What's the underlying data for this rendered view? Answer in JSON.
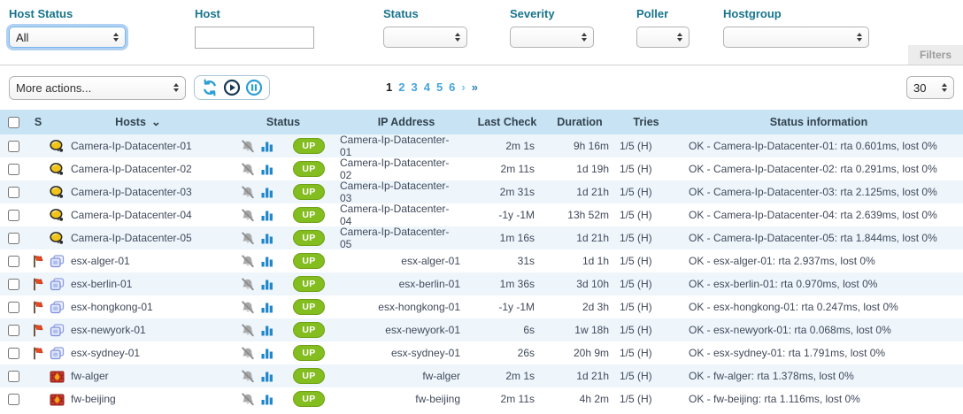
{
  "filters": {
    "panel_label": "Filters",
    "host_status": {
      "label": "Host Status",
      "value": "All"
    },
    "host": {
      "label": "Host",
      "value": ""
    },
    "status": {
      "label": "Status",
      "value": ""
    },
    "severity": {
      "label": "Severity",
      "value": ""
    },
    "poller": {
      "label": "Poller",
      "value": ""
    },
    "hostgroup": {
      "label": "Hostgroup",
      "value": ""
    }
  },
  "toolbar": {
    "more_actions_label": "More actions...",
    "icons": [
      "refresh-icon",
      "play-icon",
      "pause-icon"
    ],
    "page_size": "30"
  },
  "pagination": {
    "pages": [
      "1",
      "2",
      "3",
      "4",
      "5",
      "6"
    ],
    "current": "1",
    "next_symbol": "›",
    "last_symbol": "»"
  },
  "table": {
    "columns": [
      "S",
      "Hosts",
      "Status",
      "IP Address",
      "Last Check",
      "Duration",
      "Tries",
      "Status information"
    ],
    "rows": [
      {
        "severity_flag": false,
        "host_icon": "camera-icon",
        "name": "Camera-Ip-Datacenter-01",
        "status": "UP",
        "ip": "Camera-Ip-Datacenter-01",
        "last_check": "2m 1s",
        "duration": "9h 16m",
        "tries": "1/5 (H)",
        "info": "OK - Camera-Ip-Datacenter-01: rta 0.601ms, lost 0%"
      },
      {
        "severity_flag": false,
        "host_icon": "camera-icon",
        "name": "Camera-Ip-Datacenter-02",
        "status": "UP",
        "ip": "Camera-Ip-Datacenter-02",
        "last_check": "2m 11s",
        "duration": "1d 19h",
        "tries": "1/5 (H)",
        "info": "OK - Camera-Ip-Datacenter-02: rta 0.291ms, lost 0%"
      },
      {
        "severity_flag": false,
        "host_icon": "camera-icon",
        "name": "Camera-Ip-Datacenter-03",
        "status": "UP",
        "ip": "Camera-Ip-Datacenter-03",
        "last_check": "2m 31s",
        "duration": "1d 21h",
        "tries": "1/5 (H)",
        "info": "OK - Camera-Ip-Datacenter-03: rta 2.125ms, lost 0%"
      },
      {
        "severity_flag": false,
        "host_icon": "camera-icon",
        "name": "Camera-Ip-Datacenter-04",
        "status": "UP",
        "ip": "Camera-Ip-Datacenter-04",
        "last_check": "-1y -1M",
        "duration": "13h 52m",
        "tries": "1/5 (H)",
        "info": "OK - Camera-Ip-Datacenter-04: rta 2.639ms, lost 0%"
      },
      {
        "severity_flag": false,
        "host_icon": "camera-icon",
        "name": "Camera-Ip-Datacenter-05",
        "status": "UP",
        "ip": "Camera-Ip-Datacenter-05",
        "last_check": "1m 16s",
        "duration": "1d 21h",
        "tries": "1/5 (H)",
        "info": "OK - Camera-Ip-Datacenter-05: rta 1.844ms, lost 0%"
      },
      {
        "severity_flag": true,
        "host_icon": "vm-host-icon",
        "name": "esx-alger-01",
        "status": "UP",
        "ip": "esx-alger-01",
        "last_check": "31s",
        "duration": "1d 1h",
        "tries": "1/5 (H)",
        "info": "OK - esx-alger-01: rta 2.937ms, lost 0%"
      },
      {
        "severity_flag": true,
        "host_icon": "vm-host-icon",
        "name": "esx-berlin-01",
        "status": "UP",
        "ip": "esx-berlin-01",
        "last_check": "1m 36s",
        "duration": "3d 10h",
        "tries": "1/5 (H)",
        "info": "OK - esx-berlin-01: rta 0.970ms, lost 0%"
      },
      {
        "severity_flag": true,
        "host_icon": "vm-host-icon",
        "name": "esx-hongkong-01",
        "status": "UP",
        "ip": "esx-hongkong-01",
        "last_check": "-1y -1M",
        "duration": "2d 3h",
        "tries": "1/5 (H)",
        "info": "OK - esx-hongkong-01: rta 0.247ms, lost 0%"
      },
      {
        "severity_flag": true,
        "host_icon": "vm-host-icon",
        "name": "esx-newyork-01",
        "status": "UP",
        "ip": "esx-newyork-01",
        "last_check": "6s",
        "duration": "1w 18h",
        "tries": "1/5 (H)",
        "info": "OK - esx-newyork-01: rta 0.068ms, lost 0%"
      },
      {
        "severity_flag": true,
        "host_icon": "vm-host-icon",
        "name": "esx-sydney-01",
        "status": "UP",
        "ip": "esx-sydney-01",
        "last_check": "26s",
        "duration": "20h 9m",
        "tries": "1/5 (H)",
        "info": "OK - esx-sydney-01: rta 1.791ms, lost 0%"
      },
      {
        "severity_flag": false,
        "host_icon": "firewall-host-icon",
        "name": "fw-alger",
        "status": "UP",
        "ip": "fw-alger",
        "last_check": "2m 1s",
        "duration": "1d 21h",
        "tries": "1/5 (H)",
        "info": "OK - fw-alger: rta 1.378ms, lost 0%"
      },
      {
        "severity_flag": false,
        "host_icon": "firewall-host-icon",
        "name": "fw-beijing",
        "status": "UP",
        "ip": "fw-beijing",
        "last_check": "2m 11s",
        "duration": "4h 2m",
        "tries": "1/5 (H)",
        "info": "OK - fw-beijing: rta 1.116ms, lost 0%"
      }
    ]
  },
  "colors": {
    "label_teal": "#17748c",
    "header_bg": "#c8e4f4",
    "row_alt_bg": "#eef6fc",
    "up_badge_green": "#84bd1f",
    "link_blue": "#45a3dd",
    "icon_blue": "#2e9fd4",
    "severity_flag_red": "#e8471f"
  }
}
